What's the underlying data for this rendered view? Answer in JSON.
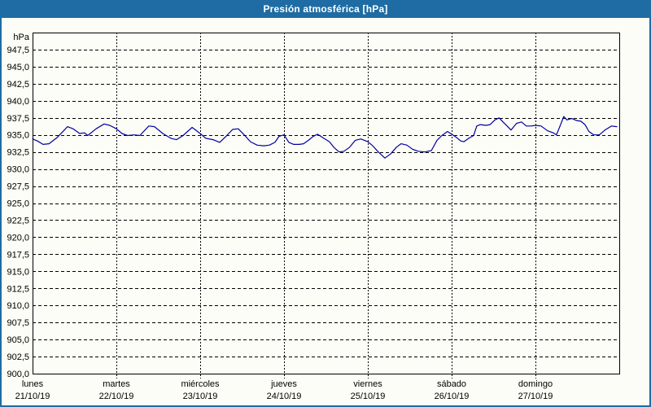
{
  "window": {
    "title": "Presión atmosférica [hPa]"
  },
  "colors": {
    "titlebar_bg": "#1e6ca3",
    "window_border": "#1e6ca3",
    "page_bg": "#fcfdf6",
    "grid": "#000000",
    "axis": "#000000",
    "text": "#000000",
    "series_line": "#0000a0"
  },
  "chart_data": {
    "type": "line",
    "title": "Presión atmosférica [hPa]",
    "ylabel_unit": "hPa",
    "ylim": [
      900,
      950
    ],
    "ytick_step": 2.5,
    "ytick_labels": [
      "947,5",
      "945,0",
      "942,5",
      "940,0",
      "937,5",
      "935,0",
      "932,5",
      "930,0",
      "927,5",
      "925,0",
      "922,5",
      "920,0",
      "917,5",
      "915,0",
      "912,5",
      "910,0",
      "907,5",
      "905,0",
      "902,5",
      "900,0"
    ],
    "ytick_values": [
      947.5,
      945.0,
      942.5,
      940.0,
      937.5,
      935.0,
      932.5,
      930.0,
      927.5,
      925.0,
      922.5,
      920.0,
      917.5,
      915.0,
      912.5,
      910.0,
      907.5,
      905.0,
      902.5,
      900.0
    ],
    "x_range_hours": [
      0,
      168
    ],
    "x_days": [
      {
        "name": "lunes",
        "date": "21/10/19",
        "start_hour": 0
      },
      {
        "name": "martes",
        "date": "22/10/19",
        "start_hour": 24
      },
      {
        "name": "miércoles",
        "date": "23/10/19",
        "start_hour": 48
      },
      {
        "name": "jueves",
        "date": "24/10/19",
        "start_hour": 72
      },
      {
        "name": "viernes",
        "date": "25/10/19",
        "start_hour": 96
      },
      {
        "name": "sábado",
        "date": "26/10/19",
        "start_hour": 120
      },
      {
        "name": "domingo",
        "date": "27/10/19",
        "start_hour": 144
      }
    ],
    "day_boundary_hours": [
      24,
      48,
      72,
      96,
      120,
      144
    ],
    "grid": "dashed",
    "legend": "none",
    "series": [
      {
        "name": "Presión atmosférica",
        "color": "#0000a0",
        "points": [
          [
            0,
            934.4
          ],
          [
            1.4,
            934.1
          ],
          [
            3,
            933.6
          ],
          [
            4.7,
            933.7
          ],
          [
            7,
            934.6
          ],
          [
            8.9,
            935.6
          ],
          [
            10,
            936.2
          ],
          [
            11.6,
            935.9
          ],
          [
            13.5,
            935.2
          ],
          [
            14.9,
            935.3
          ],
          [
            15.8,
            934.9
          ],
          [
            18.2,
            935.9
          ],
          [
            20.5,
            936.6
          ],
          [
            22.1,
            936.4
          ],
          [
            24,
            935.9
          ],
          [
            25.6,
            935.2
          ],
          [
            27.2,
            934.9
          ],
          [
            29.1,
            935.0
          ],
          [
            30.7,
            934.9
          ],
          [
            33.3,
            936.3
          ],
          [
            34.9,
            936.2
          ],
          [
            37.3,
            935.2
          ],
          [
            39.6,
            934.5
          ],
          [
            41.2,
            934.3
          ],
          [
            43.1,
            934.9
          ],
          [
            45.7,
            936.1
          ],
          [
            48,
            935.2
          ],
          [
            49.6,
            934.5
          ],
          [
            51.7,
            934.3
          ],
          [
            53.6,
            933.9
          ],
          [
            55.4,
            934.8
          ],
          [
            57.3,
            935.8
          ],
          [
            58.9,
            935.9
          ],
          [
            60.6,
            935.0
          ],
          [
            62.4,
            934.0
          ],
          [
            64.3,
            933.5
          ],
          [
            66.2,
            933.4
          ],
          [
            67.8,
            933.5
          ],
          [
            69.4,
            933.9
          ],
          [
            70.6,
            934.8
          ],
          [
            72,
            935.0
          ],
          [
            73.4,
            933.9
          ],
          [
            74.8,
            933.6
          ],
          [
            76.4,
            933.6
          ],
          [
            77.6,
            933.7
          ],
          [
            79,
            934.2
          ],
          [
            80.4,
            934.8
          ],
          [
            81.6,
            935.1
          ],
          [
            83.4,
            934.5
          ],
          [
            85,
            934.0
          ],
          [
            86.4,
            933.1
          ],
          [
            87.8,
            932.5
          ],
          [
            89.2,
            932.6
          ],
          [
            90.8,
            933.2
          ],
          [
            92.4,
            934.2
          ],
          [
            94,
            934.4
          ],
          [
            96,
            934.0
          ],
          [
            97.4,
            933.4
          ],
          [
            99,
            932.5
          ],
          [
            100.9,
            931.6
          ],
          [
            102.5,
            932.2
          ],
          [
            104.2,
            933.2
          ],
          [
            105.5,
            933.7
          ],
          [
            107.2,
            933.5
          ],
          [
            108.8,
            932.9
          ],
          [
            110.4,
            932.6
          ],
          [
            112.3,
            932.5
          ],
          [
            114.2,
            932.7
          ],
          [
            115.8,
            934.2
          ],
          [
            117.2,
            934.9
          ],
          [
            118.8,
            935.5
          ],
          [
            120,
            935.1
          ],
          [
            121.2,
            934.7
          ],
          [
            122.6,
            934.1
          ],
          [
            123.5,
            934.0
          ],
          [
            124.9,
            934.5
          ],
          [
            126.3,
            934.9
          ],
          [
            127.2,
            936.3
          ],
          [
            128.2,
            936.5
          ],
          [
            129.8,
            936.4
          ],
          [
            131,
            936.5
          ],
          [
            132.4,
            937.2
          ],
          [
            133.6,
            937.5
          ],
          [
            134.7,
            936.9
          ],
          [
            135.9,
            936.3
          ],
          [
            137,
            935.7
          ],
          [
            138.6,
            936.7
          ],
          [
            140,
            936.9
          ],
          [
            141.4,
            936.3
          ],
          [
            142.8,
            936.3
          ],
          [
            144,
            936.4
          ],
          [
            145.6,
            936.3
          ],
          [
            147.5,
            935.6
          ],
          [
            149.1,
            935.3
          ],
          [
            150,
            935.0
          ],
          [
            151.2,
            936.5
          ],
          [
            152.1,
            937.7
          ],
          [
            153,
            937.2
          ],
          [
            154.4,
            937.4
          ],
          [
            155.8,
            937.1
          ],
          [
            157,
            937.0
          ],
          [
            158.2,
            936.5
          ],
          [
            159.3,
            935.5
          ],
          [
            160.7,
            935.0
          ],
          [
            162.3,
            935.0
          ],
          [
            163.9,
            935.7
          ],
          [
            165.8,
            936.3
          ],
          [
            167.3,
            936.2
          ]
        ]
      }
    ]
  }
}
